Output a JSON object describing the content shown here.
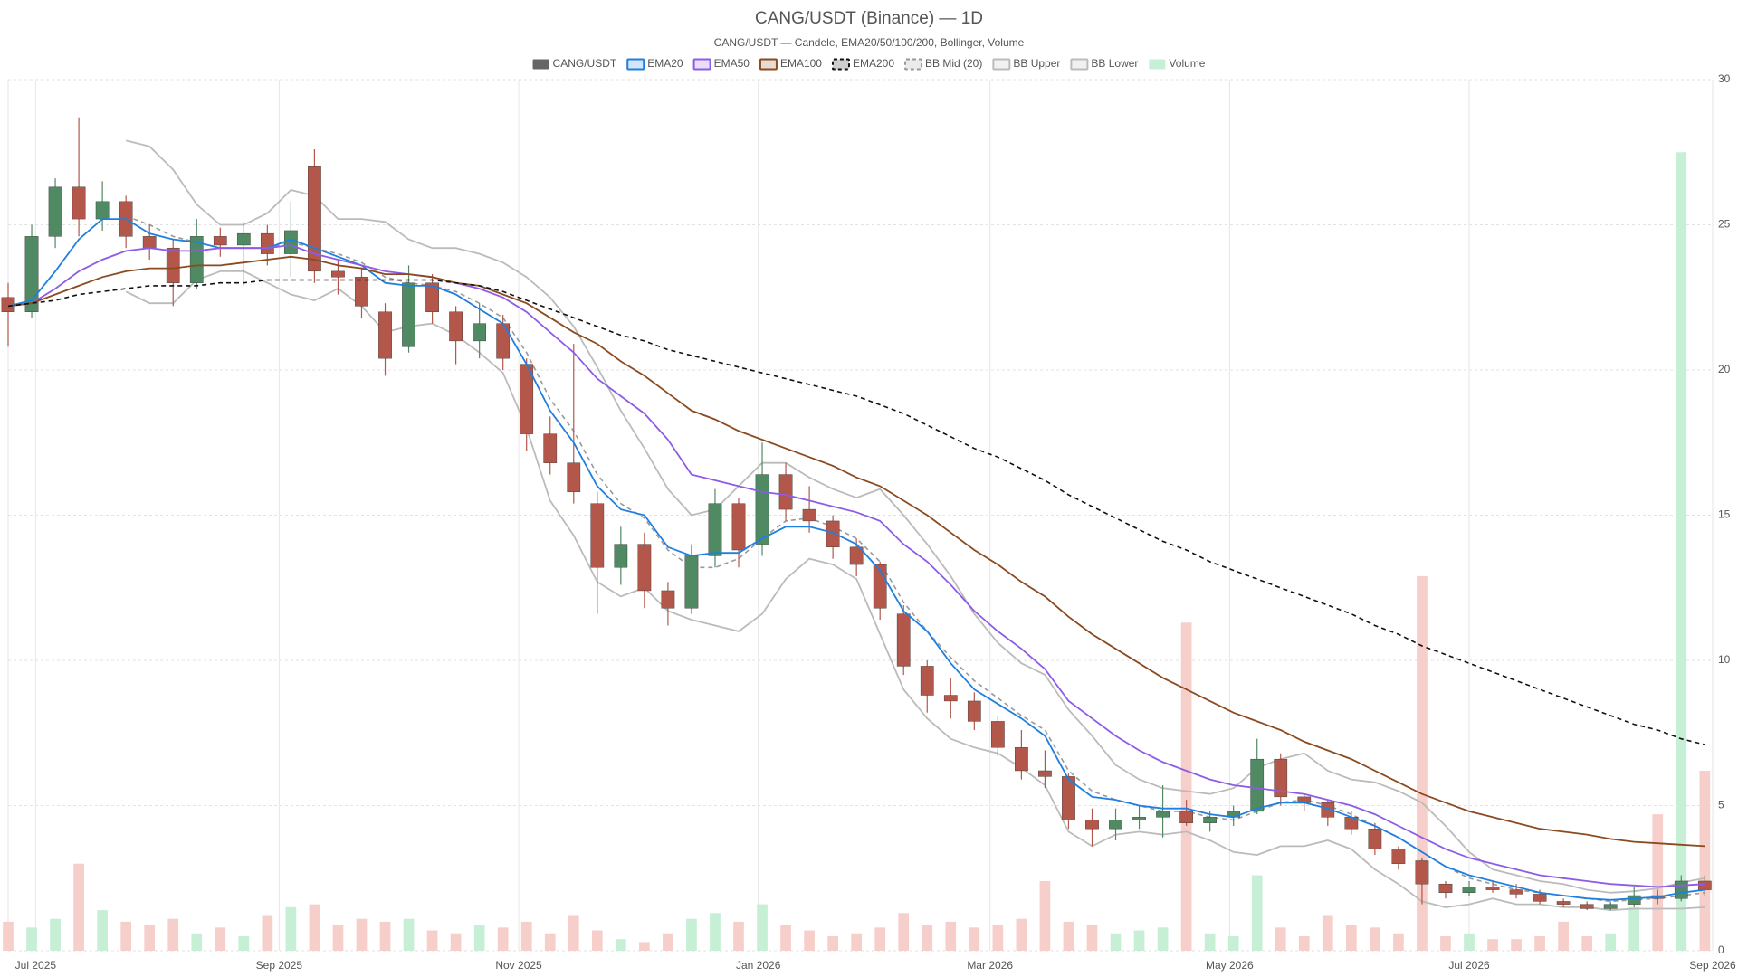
{
  "chart_data": {
    "type": "candlestick",
    "title": "CANG/USDT (Binance) — 1D",
    "subtitle": "CANG/USDT — Candele, EMA20/50/100/200, Bollinger, Volume",
    "legend": "top",
    "grid": true,
    "xlim": [
      0,
      434
    ],
    "xticks": [
      {
        "value": 7,
        "label": "Jul 2025"
      },
      {
        "value": 69,
        "label": "Sep 2025"
      },
      {
        "value": 130,
        "label": "Nov 2025"
      },
      {
        "value": 191,
        "label": "Jan 2026"
      },
      {
        "value": 250,
        "label": "Mar 2026"
      },
      {
        "value": 311,
        "label": "May 2026"
      },
      {
        "value": 372,
        "label": "Jul 2026"
      },
      {
        "value": 434,
        "label": "Sep 2026"
      }
    ],
    "ylim": [
      0,
      30
    ],
    "yticks": [
      0,
      5,
      10,
      15,
      20,
      25,
      30
    ],
    "x": [
      0,
      6,
      12,
      18,
      24,
      30,
      36,
      42,
      48,
      54,
      60,
      66,
      72,
      78,
      84,
      90,
      96,
      102,
      108,
      114,
      120,
      126,
      132,
      138,
      144,
      150,
      156,
      162,
      168,
      174,
      180,
      186,
      192,
      198,
      204,
      210,
      216,
      222,
      228,
      234,
      240,
      246,
      252,
      258,
      264,
      270,
      276,
      282,
      288,
      294,
      300,
      306,
      312,
      318,
      324,
      330,
      336,
      342,
      348,
      354,
      360,
      366,
      372,
      378,
      384,
      390,
      396,
      402,
      408,
      414,
      420,
      426,
      432
    ],
    "series": [
      {
        "name": "CANG/USDT",
        "type": "candlestick",
        "color": "#666666",
        "up_color": "#4f8a63",
        "down_color": "#b3574a",
        "open": [
          22.5,
          22.0,
          24.6,
          26.3,
          25.2,
          25.8,
          24.6,
          24.2,
          23.0,
          24.6,
          24.3,
          24.7,
          24.0,
          27.0,
          23.4,
          23.2,
          22.0,
          20.8,
          23.0,
          22.0,
          21.0,
          21.6,
          20.2,
          17.8,
          16.8,
          15.4,
          13.2,
          14.0,
          12.4,
          11.8,
          13.6,
          15.4,
          14.0,
          16.4,
          15.2,
          14.8,
          13.9,
          13.3,
          11.6,
          9.8,
          8.8,
          8.6,
          7.9,
          7.0,
          6.2,
          6.0,
          4.5,
          4.2,
          4.5,
          4.6,
          4.8,
          4.4,
          4.6,
          4.8,
          6.6,
          5.3,
          5.1,
          4.6,
          4.2,
          3.5,
          3.1,
          2.3,
          2.0,
          2.2,
          2.1,
          1.95,
          1.7,
          1.6,
          1.45,
          1.6,
          1.9,
          1.8,
          2.4
        ],
        "high": [
          23.0,
          25.0,
          26.6,
          28.7,
          26.5,
          26.0,
          25.0,
          24.5,
          25.2,
          24.9,
          25.1,
          25.0,
          25.8,
          27.6,
          23.8,
          23.5,
          22.3,
          23.6,
          23.3,
          22.2,
          22.3,
          21.9,
          20.4,
          18.4,
          20.9,
          15.8,
          14.6,
          14.4,
          12.7,
          14.0,
          15.9,
          15.6,
          17.5,
          16.8,
          16.0,
          15.0,
          14.2,
          13.4,
          11.9,
          10.0,
          9.4,
          8.9,
          8.1,
          7.6,
          6.9,
          6.1,
          4.9,
          4.9,
          5.0,
          5.7,
          5.2,
          4.8,
          5.0,
          7.3,
          6.8,
          5.4,
          5.2,
          4.8,
          4.4,
          3.6,
          3.2,
          2.4,
          2.4,
          2.4,
          2.3,
          2.1,
          1.8,
          1.7,
          1.7,
          2.2,
          2.1,
          2.6,
          2.6
        ],
        "low": [
          20.8,
          21.8,
          24.2,
          24.6,
          24.8,
          24.2,
          23.8,
          22.2,
          22.8,
          23.9,
          22.9,
          23.6,
          23.2,
          23.0,
          22.6,
          21.8,
          19.8,
          20.6,
          21.6,
          20.2,
          20.4,
          20.0,
          17.2,
          16.4,
          15.4,
          11.6,
          12.6,
          11.8,
          11.2,
          11.6,
          13.2,
          13.2,
          13.6,
          14.8,
          14.4,
          13.5,
          12.9,
          11.4,
          9.5,
          8.2,
          8.0,
          7.6,
          6.7,
          5.9,
          5.6,
          4.2,
          3.6,
          3.8,
          4.2,
          3.9,
          4.3,
          4.1,
          4.3,
          4.7,
          5.0,
          4.8,
          4.3,
          4.0,
          3.3,
          2.8,
          1.6,
          1.8,
          1.9,
          2.0,
          1.8,
          1.6,
          1.5,
          1.4,
          1.4,
          1.5,
          1.6,
          1.7,
          1.9
        ],
        "close": [
          22.0,
          24.6,
          26.3,
          25.2,
          25.8,
          24.6,
          24.2,
          23.0,
          24.6,
          24.3,
          24.7,
          24.0,
          24.8,
          23.4,
          23.2,
          22.2,
          20.4,
          23.0,
          22.0,
          21.0,
          21.6,
          20.4,
          17.8,
          16.8,
          15.8,
          13.2,
          14.0,
          12.4,
          11.8,
          13.6,
          15.4,
          13.8,
          16.4,
          15.2,
          14.8,
          13.9,
          13.3,
          11.8,
          9.8,
          8.8,
          8.6,
          7.9,
          7.0,
          6.2,
          6.0,
          4.5,
          4.2,
          4.5,
          4.6,
          4.8,
          4.4,
          4.6,
          4.8,
          6.6,
          5.3,
          5.1,
          4.6,
          4.2,
          3.5,
          3.0,
          2.3,
          2.0,
          2.2,
          2.1,
          1.95,
          1.7,
          1.6,
          1.45,
          1.6,
          1.9,
          1.8,
          2.4,
          2.1
        ]
      },
      {
        "name": "EMA20",
        "type": "line",
        "color": "#1f7fe0",
        "values": [
          22.2,
          22.4,
          23.4,
          24.5,
          25.2,
          25.2,
          24.7,
          24.5,
          24.4,
          24.2,
          24.2,
          24.2,
          24.5,
          24.2,
          23.9,
          23.6,
          23.0,
          22.9,
          22.9,
          22.6,
          22.1,
          21.6,
          20.2,
          18.6,
          17.5,
          16.0,
          15.2,
          15.0,
          13.9,
          13.6,
          13.7,
          13.7,
          14.2,
          14.6,
          14.6,
          14.4,
          14.0,
          13.1,
          11.7,
          11.0,
          9.9,
          9.0,
          8.5,
          8.0,
          7.4,
          5.9,
          5.3,
          5.2,
          5.0,
          4.9,
          4.9,
          4.7,
          4.6,
          4.9,
          5.1,
          5.1,
          4.9,
          4.6,
          4.3,
          3.9,
          3.4,
          2.9,
          2.6,
          2.4,
          2.2,
          2.0,
          1.9,
          1.8,
          1.75,
          1.8,
          1.85,
          2.0,
          2.1
        ]
      },
      {
        "name": "EMA50",
        "type": "line",
        "color": "#8c5ce6",
        "values": [
          22.2,
          22.3,
          22.8,
          23.4,
          23.8,
          24.1,
          24.2,
          24.1,
          24.1,
          24.2,
          24.2,
          24.2,
          24.3,
          24.0,
          23.8,
          23.6,
          23.4,
          23.3,
          23.2,
          23.0,
          22.8,
          22.5,
          22.0,
          21.3,
          20.6,
          19.7,
          19.1,
          18.5,
          17.6,
          16.4,
          16.2,
          16.0,
          15.8,
          15.7,
          15.5,
          15.3,
          15.1,
          14.8,
          14.0,
          13.4,
          12.6,
          11.7,
          11.0,
          10.4,
          9.7,
          8.6,
          8.0,
          7.4,
          6.9,
          6.5,
          6.2,
          5.9,
          5.7,
          5.6,
          5.5,
          5.4,
          5.2,
          5.0,
          4.7,
          4.3,
          3.9,
          3.5,
          3.2,
          3.0,
          2.8,
          2.6,
          2.5,
          2.4,
          2.3,
          2.25,
          2.2,
          2.25,
          2.3
        ]
      },
      {
        "name": "EMA100",
        "type": "line",
        "color": "#8b4a1f",
        "values": [
          22.2,
          22.3,
          22.6,
          22.9,
          23.2,
          23.4,
          23.5,
          23.5,
          23.6,
          23.6,
          23.7,
          23.8,
          23.9,
          23.8,
          23.6,
          23.5,
          23.3,
          23.3,
          23.2,
          23.0,
          22.9,
          22.6,
          22.3,
          21.8,
          21.3,
          20.9,
          20.3,
          19.8,
          19.2,
          18.6,
          18.3,
          17.9,
          17.6,
          17.3,
          17.0,
          16.7,
          16.3,
          16.0,
          15.5,
          15.0,
          14.4,
          13.8,
          13.3,
          12.7,
          12.2,
          11.5,
          10.9,
          10.4,
          9.9,
          9.4,
          9.0,
          8.6,
          8.2,
          7.9,
          7.6,
          7.2,
          6.9,
          6.6,
          6.2,
          5.8,
          5.4,
          5.1,
          4.8,
          4.6,
          4.4,
          4.2,
          4.1,
          4.0,
          3.85,
          3.75,
          3.7,
          3.65,
          3.6
        ]
      },
      {
        "name": "EMA200",
        "type": "line",
        "color": "#111111",
        "dashed": true,
        "values": [
          22.2,
          22.3,
          22.4,
          22.6,
          22.7,
          22.8,
          22.9,
          22.9,
          22.9,
          23.0,
          23.0,
          23.1,
          23.1,
          23.1,
          23.1,
          23.1,
          23.1,
          23.1,
          23.1,
          23.0,
          22.9,
          22.7,
          22.4,
          22.1,
          21.8,
          21.5,
          21.2,
          21.0,
          20.7,
          20.5,
          20.3,
          20.1,
          19.9,
          19.7,
          19.5,
          19.3,
          19.1,
          18.8,
          18.5,
          18.1,
          17.7,
          17.3,
          17.0,
          16.6,
          16.2,
          15.7,
          15.3,
          14.9,
          14.5,
          14.1,
          13.8,
          13.4,
          13.1,
          12.8,
          12.5,
          12.2,
          11.9,
          11.6,
          11.2,
          10.9,
          10.5,
          10.2,
          9.9,
          9.6,
          9.3,
          9.0,
          8.7,
          8.4,
          8.1,
          7.8,
          7.6,
          7.3,
          7.1
        ]
      },
      {
        "name": "BB Mid (20)",
        "type": "line",
        "color": "#999999",
        "dashed": true,
        "values": [
          null,
          null,
          null,
          null,
          null,
          25.3,
          25.0,
          24.6,
          24.4,
          24.2,
          24.2,
          24.2,
          24.4,
          24.2,
          24.0,
          23.7,
          23.2,
          23.0,
          22.9,
          22.7,
          22.3,
          21.8,
          20.6,
          19.0,
          17.9,
          16.4,
          15.4,
          14.9,
          13.8,
          13.2,
          13.2,
          13.5,
          14.2,
          14.8,
          14.9,
          14.6,
          14.2,
          13.4,
          12.0,
          11.0,
          10.1,
          9.3,
          8.7,
          8.1,
          7.6,
          6.2,
          5.5,
          5.2,
          5.0,
          4.8,
          4.8,
          4.6,
          4.5,
          4.8,
          5.1,
          5.2,
          5.0,
          4.7,
          4.3,
          3.9,
          3.4,
          2.9,
          2.5,
          2.3,
          2.1,
          2.0,
          1.9,
          1.8,
          1.7,
          1.75,
          1.8,
          1.9,
          2.0
        ]
      },
      {
        "name": "BB Upper",
        "type": "line",
        "color": "#bbbbbb",
        "values": [
          null,
          null,
          null,
          null,
          null,
          27.9,
          27.7,
          26.9,
          25.7,
          25.0,
          25.0,
          25.4,
          26.2,
          26.0,
          25.2,
          25.2,
          25.1,
          24.5,
          24.2,
          24.2,
          24.0,
          23.7,
          23.2,
          22.5,
          21.5,
          20.1,
          18.6,
          17.3,
          15.9,
          15.0,
          15.2,
          16.0,
          16.8,
          16.8,
          16.3,
          15.9,
          15.6,
          15.9,
          15.0,
          14.0,
          12.9,
          11.6,
          10.6,
          9.9,
          9.5,
          8.3,
          7.4,
          6.4,
          5.9,
          5.6,
          5.5,
          5.4,
          5.6,
          6.3,
          6.6,
          6.8,
          6.2,
          5.9,
          5.8,
          5.5,
          5.1,
          4.3,
          3.4,
          2.8,
          2.6,
          2.4,
          2.3,
          2.1,
          2.0,
          2.05,
          2.15,
          2.35,
          2.5
        ]
      },
      {
        "name": "BB Lower",
        "type": "line",
        "color": "#bbbbbb",
        "values": [
          null,
          null,
          null,
          null,
          null,
          22.7,
          22.3,
          22.3,
          23.1,
          23.4,
          23.4,
          23.0,
          22.6,
          22.4,
          22.8,
          22.2,
          21.3,
          21.5,
          21.6,
          21.2,
          20.6,
          19.9,
          18.0,
          15.5,
          14.3,
          12.7,
          12.2,
          12.5,
          11.7,
          11.4,
          11.2,
          11.0,
          11.6,
          12.8,
          13.5,
          13.3,
          12.8,
          10.9,
          9.0,
          8.0,
          7.3,
          7.0,
          6.8,
          6.3,
          5.7,
          4.1,
          3.6,
          4.0,
          4.1,
          4.0,
          4.1,
          3.8,
          3.4,
          3.3,
          3.6,
          3.6,
          3.8,
          3.5,
          2.8,
          2.3,
          1.7,
          1.5,
          1.6,
          1.8,
          1.6,
          1.6,
          1.5,
          1.5,
          1.4,
          1.45,
          1.45,
          1.45,
          1.5
        ]
      },
      {
        "name": "Volume",
        "type": "bar",
        "color": "#c6efd6",
        "up_color": "#c6efd6",
        "down_color": "#f7cfca",
        "values": [
          1.0,
          0.8,
          1.1,
          3.0,
          1.4,
          1.0,
          0.9,
          1.1,
          0.6,
          0.8,
          0.5,
          1.2,
          1.5,
          1.6,
          0.9,
          1.1,
          1.0,
          1.1,
          0.7,
          0.6,
          0.9,
          0.8,
          1.0,
          0.6,
          1.2,
          0.7,
          0.4,
          0.3,
          0.6,
          1.1,
          1.3,
          1.0,
          1.6,
          0.9,
          0.7,
          0.5,
          0.6,
          0.8,
          1.3,
          0.9,
          1.0,
          0.8,
          0.9,
          1.1,
          2.4,
          1.0,
          0.9,
          0.6,
          0.7,
          0.8,
          11.3,
          0.6,
          0.5,
          2.6,
          0.8,
          0.5,
          1.2,
          0.9,
          0.8,
          0.6,
          12.9,
          0.5,
          0.6,
          0.4,
          0.4,
          0.5,
          1.0,
          0.5,
          0.6,
          1.5,
          4.7,
          27.5,
          6.2
        ]
      }
    ]
  }
}
